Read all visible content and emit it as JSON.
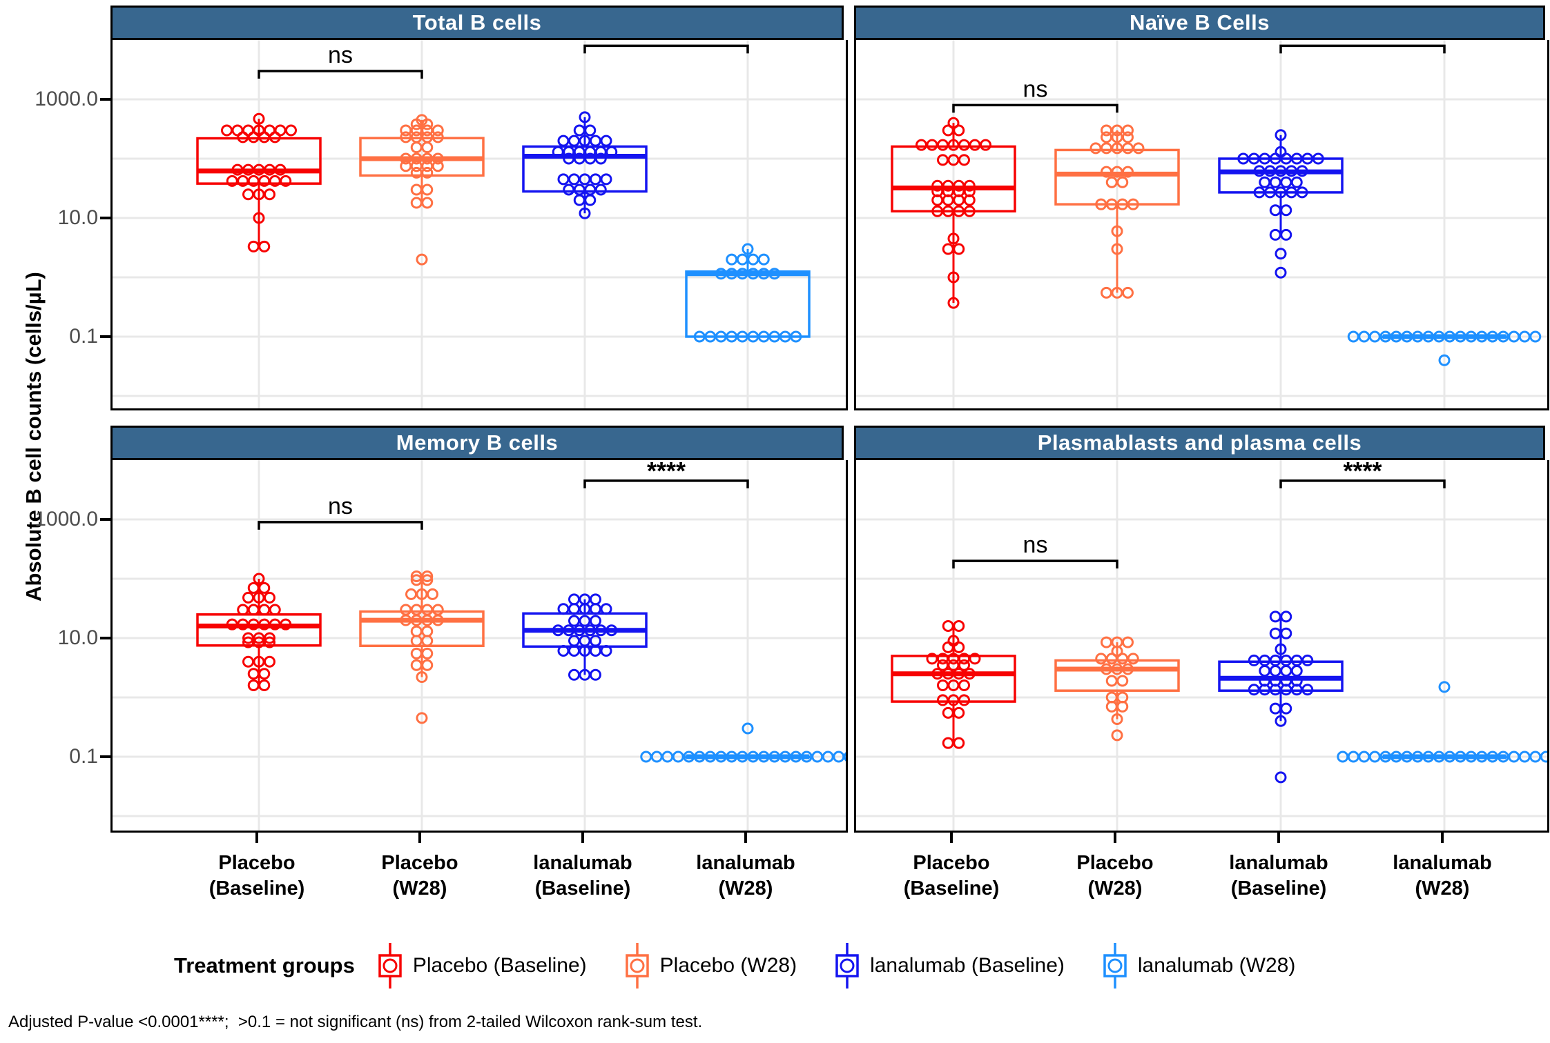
{
  "y_axis": {
    "label": "Absolute B cell counts (cells/µL)",
    "tick_labels": [
      "1000.0",
      "10.0",
      "0.1"
    ],
    "tick_values": [
      1000,
      10,
      0.1
    ]
  },
  "gridline_decades": [
    1000,
    100,
    10,
    1,
    0.1,
    0.01
  ],
  "x_axis": {
    "group_labels": [
      [
        "Placebo",
        "(Baseline)"
      ],
      [
        "Placebo",
        "(W28)"
      ],
      [
        "lanalumab",
        "(Baseline)"
      ],
      [
        "lanalumab",
        "(W28)"
      ]
    ]
  },
  "legend": {
    "title": "Treatment groups",
    "items": [
      {
        "label": "Placebo (Baseline)",
        "color": "red"
      },
      {
        "label": "Placebo (W28)",
        "color": "orange"
      },
      {
        "label": "lanalumab (Baseline)",
        "color": "blue"
      },
      {
        "label": "lanalumab (W28)",
        "color": "lightblue"
      }
    ]
  },
  "footnote": "Adjusted P-value <0.0001****;  >0.1 = not significant (ns) from 2-tailed Wilcoxon rank-sum test.",
  "style": {
    "header_bg": "#38678F",
    "header_text": "#FFFFFF",
    "grid_color": "#E8E8E8",
    "tick_label_color": "#4D4D4D",
    "series_colors": {
      "red": "#F70202",
      "orange": "#FF7043",
      "blue": "#1414F0",
      "lightblue": "#1E90FF"
    }
  },
  "chart_data": [
    {
      "type": "box",
      "title": "Total B cells",
      "ylog": true,
      "ylabel": "Absolute B cell counts (cells/µL)",
      "ylim": [
        0.006,
        10000
      ],
      "yticks": [
        1000,
        10,
        0.1
      ],
      "significance": [
        {
          "from": 0,
          "to": 1,
          "label": "ns",
          "y": 3000
        },
        {
          "from": 2,
          "to": 3,
          "label": "****",
          "y": 8000
        }
      ],
      "groups": [
        {
          "name": "Placebo (Baseline)",
          "color": "red",
          "box": {
            "q1": 38,
            "median": 62,
            "q3": 220,
            "whisker_low": 3.3,
            "whisker_high": 470
          },
          "points": [
            470,
            300,
            300,
            300,
            300,
            300,
            300,
            300,
            230,
            230,
            230,
            230,
            65,
            65,
            65,
            65,
            65,
            42,
            42,
            42,
            42,
            42,
            42,
            25,
            25,
            25,
            10,
            3.3,
            3.3
          ]
        },
        {
          "name": "Placebo (W28)",
          "color": "orange",
          "box": {
            "q1": 52,
            "median": 100,
            "q3": 222,
            "whisker_low": 16,
            "whisker_high": 450
          },
          "points": [
            450,
            380,
            380,
            300,
            300,
            300,
            300,
            230,
            230,
            230,
            230,
            155,
            155,
            100,
            100,
            100,
            100,
            75,
            75,
            75,
            75,
            58,
            58,
            30,
            30,
            18,
            18,
            2
          ]
        },
        {
          "name": "lanalumab (Baseline)",
          "color": "blue",
          "box": {
            "q1": 28,
            "median": 110,
            "q3": 160,
            "whisker_low": 12,
            "whisker_high": 500
          },
          "points": [
            500,
            300,
            300,
            200,
            200,
            200,
            200,
            200,
            130,
            130,
            130,
            130,
            130,
            130,
            100,
            100,
            100,
            100,
            45,
            45,
            45,
            45,
            45,
            30,
            30,
            30,
            30,
            20,
            20,
            12
          ]
        },
        {
          "name": "lanalumab (W28)",
          "color": "lightblue",
          "box": {
            "q1": 0.1,
            "median": 1.15,
            "q3": 1.25,
            "whisker_low": 0.1,
            "whisker_high": 3
          },
          "points": [
            3,
            2,
            2,
            2,
            2,
            1.15,
            1.15,
            1.15,
            1.15,
            1.15,
            1.15,
            0.1,
            0.1,
            0.1,
            0.1,
            0.1,
            0.1,
            0.1,
            0.1,
            0.1,
            0.1
          ]
        }
      ]
    },
    {
      "type": "box",
      "title": "Naïve B Cells",
      "ylog": true,
      "ylim": [
        0.006,
        10000
      ],
      "yticks": [
        1000,
        10,
        0.1
      ],
      "significance": [
        {
          "from": 0,
          "to": 1,
          "label": "ns",
          "y": 800
        },
        {
          "from": 2,
          "to": 3,
          "label": "****",
          "y": 8000
        }
      ],
      "groups": [
        {
          "name": "Placebo (Baseline)",
          "color": "red",
          "box": {
            "q1": 13,
            "median": 32,
            "q3": 160,
            "whisker_low": 0.37,
            "whisker_high": 400
          },
          "points": [
            400,
            300,
            300,
            170,
            170,
            170,
            170,
            170,
            170,
            170,
            95,
            95,
            95,
            35,
            35,
            35,
            35,
            28,
            28,
            28,
            28,
            20,
            20,
            20,
            20,
            13,
            13,
            13,
            13,
            4.5,
            3,
            3,
            1,
            0.37
          ]
        },
        {
          "name": "Placebo (W28)",
          "color": "orange",
          "box": {
            "q1": 17,
            "median": 55,
            "q3": 140,
            "whisker_low": 0.55,
            "whisker_high": 300
          },
          "points": [
            300,
            300,
            300,
            230,
            230,
            230,
            150,
            150,
            150,
            150,
            150,
            60,
            60,
            60,
            40,
            40,
            17,
            17,
            17,
            17,
            6,
            3,
            0.55,
            0.55,
            0.55
          ]
        },
        {
          "name": "lanalumab (Baseline)",
          "color": "blue",
          "box": {
            "q1": 27,
            "median": 60,
            "q3": 100,
            "whisker_low": 5.2,
            "whisker_high": 250
          },
          "points": [
            250,
            130,
            100,
            100,
            100,
            100,
            100,
            100,
            100,
            100,
            62,
            62,
            62,
            62,
            62,
            40,
            40,
            40,
            40,
            27,
            27,
            27,
            27,
            27,
            13.5,
            13.5,
            5.2,
            5.2,
            2.5,
            1.2
          ]
        },
        {
          "name": "lanalumab (W28)",
          "color": "lightblue",
          "box": {
            "q1": 0.1,
            "median": 0.1,
            "q3": 0.1,
            "whisker_low": 0.1,
            "whisker_high": 0.1
          },
          "points": [
            0.1,
            0.1,
            0.1,
            0.1,
            0.1,
            0.1,
            0.1,
            0.1,
            0.1,
            0.1,
            0.1,
            0.1,
            0.1,
            0.1,
            0.1,
            0.1,
            0.1,
            0.1,
            0.04
          ]
        }
      ]
    },
    {
      "type": "box",
      "title": "Memory B cells",
      "ylog": true,
      "ylim": [
        0.006,
        10000
      ],
      "yticks": [
        1000,
        10,
        0.1
      ],
      "significance": [
        {
          "from": 0,
          "to": 1,
          "label": "ns",
          "y": 900
        },
        {
          "from": 2,
          "to": 3,
          "label": "****",
          "y": 4500
        }
      ],
      "groups": [
        {
          "name": "Placebo (Baseline)",
          "color": "red",
          "box": {
            "q1": 7.5,
            "median": 16,
            "q3": 25,
            "whisker_low": 1.4,
            "whisker_high": 100
          },
          "points": [
            100,
            70,
            70,
            48,
            48,
            48,
            30,
            30,
            30,
            30,
            17,
            17,
            17,
            17,
            17,
            17,
            10,
            10,
            10,
            8.5,
            8.5,
            8.5,
            4,
            4,
            4,
            2.5,
            2.5,
            1.6,
            1.6
          ]
        },
        {
          "name": "Placebo (W28)",
          "color": "orange",
          "box": {
            "q1": 7.4,
            "median": 20,
            "q3": 28,
            "whisker_low": 2.2,
            "whisker_high": 110
          },
          "points": [
            110,
            110,
            95,
            95,
            55,
            55,
            55,
            30,
            30,
            30,
            30,
            20,
            20,
            20,
            20,
            13,
            13,
            9,
            9,
            5.5,
            5.5,
            3.5,
            3.5,
            2.2,
            0.45
          ]
        },
        {
          "name": "lanalumab (Baseline)",
          "color": "blue",
          "box": {
            "q1": 7.2,
            "median": 13.5,
            "q3": 26,
            "whisker_low": 2.4,
            "whisker_high": 45
          },
          "points": [
            45,
            45,
            45,
            31,
            31,
            31,
            31,
            31,
            19.5,
            19.5,
            19.5,
            13.5,
            13.5,
            13.5,
            13.5,
            13.5,
            13.5,
            9,
            9,
            9,
            6.1,
            6.1,
            6.1,
            6.1,
            6.1,
            2.4,
            2.4,
            2.4
          ]
        },
        {
          "name": "lanalumab (W28)",
          "color": "lightblue",
          "box": {
            "q1": 0.1,
            "median": 0.1,
            "q3": 0.1,
            "whisker_low": 0.1,
            "whisker_high": 0.1
          },
          "points": [
            0.3,
            0.1,
            0.1,
            0.1,
            0.1,
            0.1,
            0.1,
            0.1,
            0.1,
            0.1,
            0.1,
            0.1,
            0.1,
            0.1,
            0.1,
            0.1,
            0.1,
            0.1,
            0.1,
            0.1,
            0.1
          ]
        }
      ]
    },
    {
      "type": "box",
      "title": "Plasmablasts and plasma cells",
      "ylog": true,
      "ylim": [
        0.006,
        10000
      ],
      "yticks": [
        1000,
        10,
        0.1
      ],
      "significance": [
        {
          "from": 0,
          "to": 1,
          "label": "ns",
          "y": 200
        },
        {
          "from": 2,
          "to": 3,
          "label": "****",
          "y": 4500
        }
      ],
      "groups": [
        {
          "name": "Placebo (Baseline)",
          "color": "red",
          "box": {
            "q1": 0.85,
            "median": 2.5,
            "q3": 5,
            "whisker_low": 0.17,
            "whisker_high": 16
          },
          "points": [
            16,
            16,
            9,
            7,
            7,
            4.5,
            4.5,
            4.5,
            4.5,
            4.5,
            3.5,
            3.5,
            3.5,
            2.5,
            2.5,
            2.5,
            2.5,
            1.6,
            1.6,
            1.6,
            0.9,
            0.9,
            0.9,
            0.55,
            0.55,
            0.17,
            0.17
          ]
        },
        {
          "name": "Placebo (W28)",
          "color": "orange",
          "box": {
            "q1": 1.3,
            "median": 3,
            "q3": 4.2,
            "whisker_low": 0.43,
            "whisker_high": 8.5
          },
          "points": [
            8.5,
            8.5,
            8.5,
            6,
            4.5,
            4.5,
            4.5,
            4.5,
            3,
            3,
            3,
            1.9,
            1.9,
            1,
            1,
            0.7,
            0.7,
            0.43,
            0.23
          ]
        },
        {
          "name": "lanalumab (Baseline)",
          "color": "blue",
          "box": {
            "q1": 1.3,
            "median": 2.1,
            "q3": 4,
            "whisker_low": 0.4,
            "whisker_high": 23
          },
          "points": [
            23,
            23,
            12,
            12,
            6.5,
            4.2,
            4.2,
            4.2,
            4.2,
            4.2,
            4.2,
            2.8,
            2.8,
            2.8,
            2.8,
            1.9,
            1.9,
            1.9,
            1.9,
            1.35,
            1.35,
            1.35,
            1.35,
            1.35,
            1.35,
            0.65,
            0.65,
            0.4,
            0.045
          ]
        },
        {
          "name": "lanalumab (W28)",
          "color": "lightblue",
          "box": {
            "q1": 0.1,
            "median": 0.1,
            "q3": 0.1,
            "whisker_low": 0.1,
            "whisker_high": 0.1
          },
          "points": [
            1.5,
            0.1,
            0.1,
            0.1,
            0.1,
            0.1,
            0.1,
            0.1,
            0.1,
            0.1,
            0.1,
            0.1,
            0.1,
            0.1,
            0.1,
            0.1,
            0.1,
            0.1,
            0.1,
            0.1,
            0.1
          ]
        }
      ]
    }
  ]
}
